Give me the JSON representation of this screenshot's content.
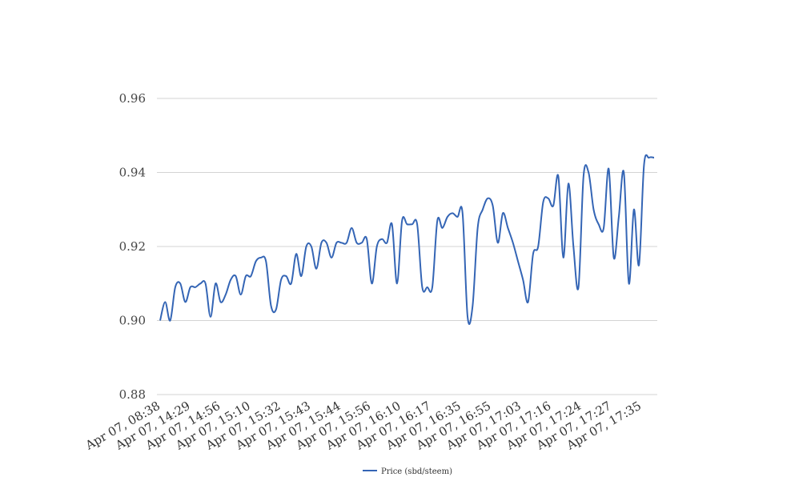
{
  "chart_data": {
    "type": "line",
    "title": "",
    "xlabel": "",
    "ylabel": "",
    "ylim": [
      0.88,
      0.96
    ],
    "yticks": [
      "0.88",
      "0.90",
      "0.92",
      "0.94",
      "0.96"
    ],
    "xtick_labels": [
      "Apr 07, 08:38",
      "Apr 07, 14:29",
      "Apr 07, 14:56",
      "Apr 07, 15:10",
      "Apr 07, 15:32",
      "Apr 07, 15:43",
      "Apr 07, 15:44",
      "Apr 07, 15:56",
      "Apr 07, 16:10",
      "Apr 07, 16:17",
      "Apr 07, 16:35",
      "Apr 07, 16:55",
      "Apr 07, 17:03",
      "Apr 07, 17:16",
      "Apr 07, 17:24",
      "Apr 07, 17:27",
      "Apr 07, 17:35"
    ],
    "grid": true,
    "legend_position": "bottom",
    "colors": {
      "series": "#3465b5",
      "grid": "#d3d3d3"
    },
    "series": [
      {
        "name": "Price (sbd/steem)",
        "values": [
          0.9,
          0.905,
          0.9,
          0.909,
          0.91,
          0.905,
          0.909,
          0.909,
          0.91,
          0.91,
          0.901,
          0.91,
          0.905,
          0.907,
          0.911,
          0.912,
          0.907,
          0.912,
          0.912,
          0.916,
          0.917,
          0.916,
          0.904,
          0.903,
          0.911,
          0.912,
          0.91,
          0.918,
          0.912,
          0.92,
          0.92,
          0.914,
          0.921,
          0.921,
          0.917,
          0.921,
          0.921,
          0.921,
          0.925,
          0.921,
          0.921,
          0.922,
          0.91,
          0.92,
          0.922,
          0.921,
          0.926,
          0.91,
          0.927,
          0.926,
          0.926,
          0.926,
          0.909,
          0.909,
          0.909,
          0.927,
          0.925,
          0.928,
          0.929,
          0.928,
          0.929,
          0.901,
          0.904,
          0.925,
          0.93,
          0.933,
          0.931,
          0.921,
          0.929,
          0.925,
          0.921,
          0.916,
          0.911,
          0.905,
          0.918,
          0.92,
          0.932,
          0.933,
          0.931,
          0.939,
          0.917,
          0.937,
          0.92,
          0.909,
          0.939,
          0.94,
          0.93,
          0.926,
          0.925,
          0.941,
          0.917,
          0.928,
          0.94,
          0.91,
          0.93,
          0.915,
          0.942,
          0.944,
          0.944
        ]
      }
    ]
  }
}
